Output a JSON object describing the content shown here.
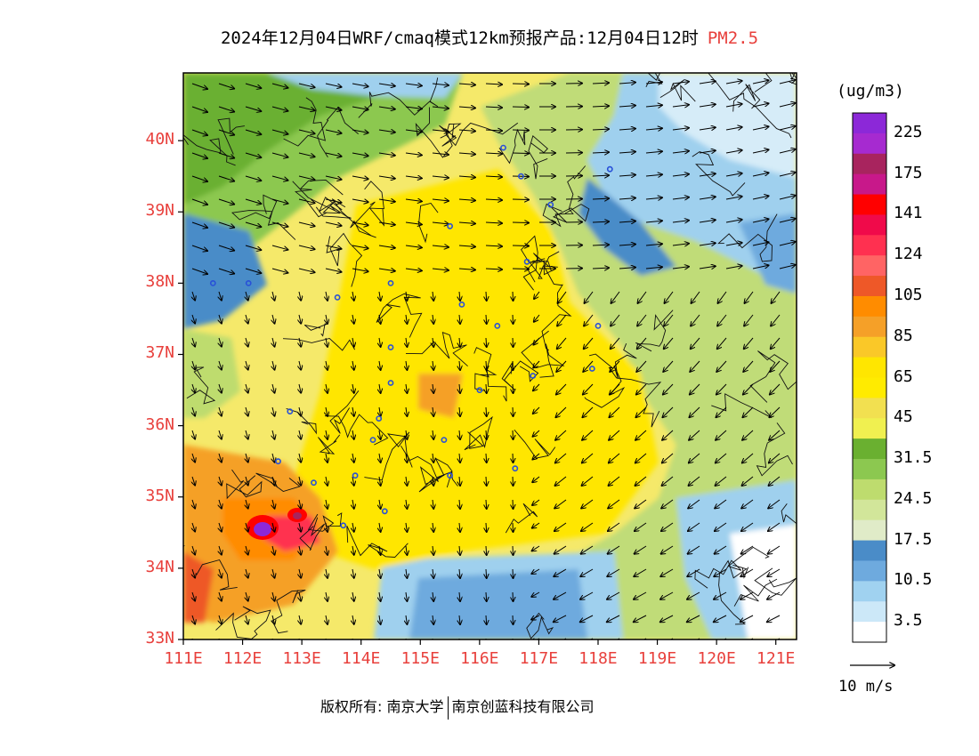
{
  "title": {
    "text": "2024年12月04日WRF/cmaq模式12km预报产品:12月04日12时",
    "pollutant": "PM2.5"
  },
  "map": {
    "lat_labels": [
      "40N",
      "39N",
      "38N",
      "37N",
      "36N",
      "35N",
      "34N",
      "33N"
    ],
    "lon_labels": [
      "111E",
      "112E",
      "113E",
      "114E",
      "115E",
      "116E",
      "117E",
      "118E",
      "119E",
      "120E",
      "121E"
    ],
    "lat_range": [
      33,
      40.95
    ],
    "lon_range": [
      111,
      121.35
    ],
    "grid_lines": false,
    "wind_vectors": true,
    "city_markers": true
  },
  "colorbar": {
    "unit": "(ug/m3)",
    "labels": [
      "225",
      "175",
      "141",
      "124",
      "105",
      "85",
      "65",
      "45",
      "31.5",
      "24.5",
      "17.5",
      "10.5",
      "3.5"
    ],
    "colors_top_to_bottom": [
      "#8c28d8",
      "#a62ad0",
      "#a8245e",
      "#c8188a",
      "#ff0000",
      "#f00a4a",
      "#ff3050",
      "#ff6464",
      "#ee5828",
      "#ff8c00",
      "#f5a028",
      "#fac828",
      "#ffe600",
      "#ffeb00",
      "#f2e050",
      "#f0f050",
      "#6ab030",
      "#8cc850",
      "#bedc6e",
      "#d2e69a",
      "#e0ebc8",
      "#4a8cc8",
      "#6eaade",
      "#a0d2f0",
      "#cce8f8",
      "#ffffff"
    ]
  },
  "wind_legend": {
    "label": "10 m/s"
  },
  "copyright": {
    "prefix": "版权所有:",
    "org1": "南京大学",
    "org2": "南京创蓝科技有限公司"
  }
}
